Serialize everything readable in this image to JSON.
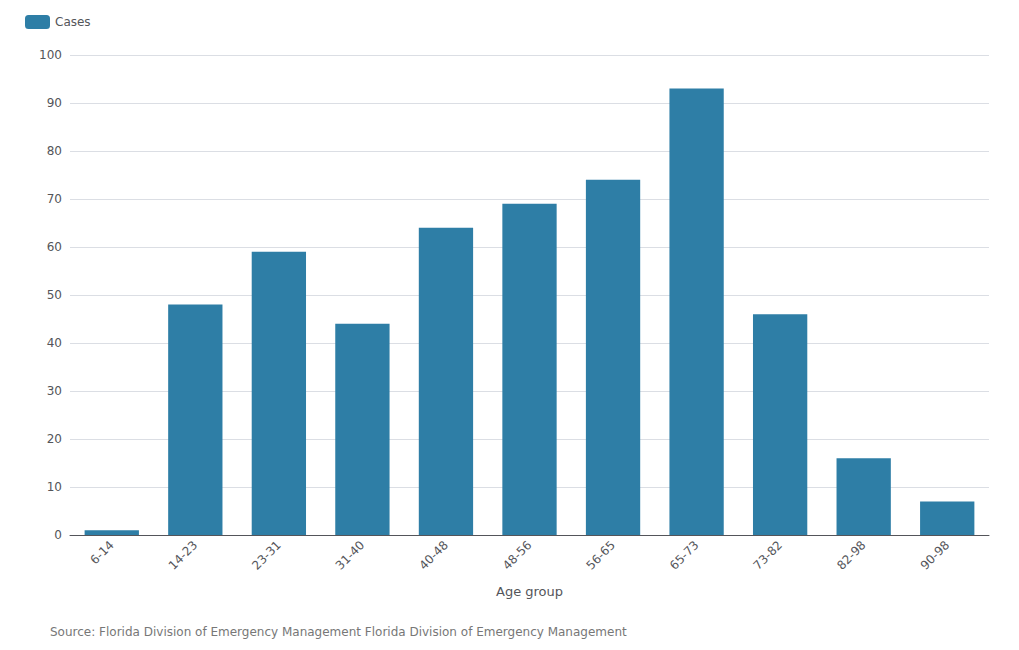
{
  "chart_data": {
    "type": "bar",
    "categories": [
      "6-14",
      "14-23",
      "23-31",
      "31-40",
      "40-48",
      "48-56",
      "56-65",
      "65-73",
      "73-82",
      "82-98",
      "90-98"
    ],
    "series": [
      {
        "name": "Cases",
        "color": "#2e7ea6",
        "values": [
          1,
          48,
          59,
          44,
          64,
          69,
          74,
          93,
          46,
          16,
          7
        ]
      }
    ],
    "xlabel": "Age group",
    "ylim": [
      0,
      100
    ],
    "yticks": [
      0,
      10,
      20,
      30,
      40,
      50,
      60,
      70,
      80,
      90,
      100
    ],
    "grid": true,
    "legend": "top-left",
    "annotation": "Source: Florida Division of Emergency Management Florida Division of Emergency Management"
  }
}
